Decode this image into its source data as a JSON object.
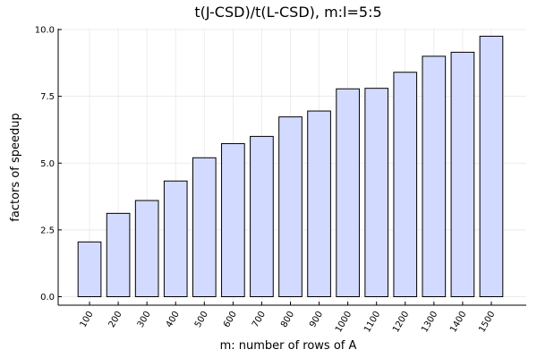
{
  "chart_data": {
    "type": "bar",
    "title": "t(J-CSD)/t(L-CSD), m:l=5:5",
    "xlabel": "m: number of rows of A",
    "ylabel": "factors of speedup",
    "categories": [
      "100",
      "200",
      "300",
      "400",
      "500",
      "600",
      "700",
      "800",
      "900",
      "1000",
      "1100",
      "1200",
      "1300",
      "1400",
      "1500"
    ],
    "values": [
      2.05,
      3.12,
      3.6,
      4.33,
      5.2,
      5.73,
      6.0,
      6.73,
      6.95,
      7.78,
      7.8,
      8.4,
      9.0,
      9.15,
      9.75
    ],
    "yticks": [
      0.0,
      2.5,
      5.0,
      7.5,
      10.0
    ],
    "ytick_labels": [
      "0.0",
      "2.5",
      "5.0",
      "7.5",
      "10.0"
    ],
    "ylim": [
      -0.3,
      10.0
    ],
    "grid": true,
    "legend": "none",
    "bar_color": "#d2dbff",
    "bar_edge_color": "#000000"
  }
}
